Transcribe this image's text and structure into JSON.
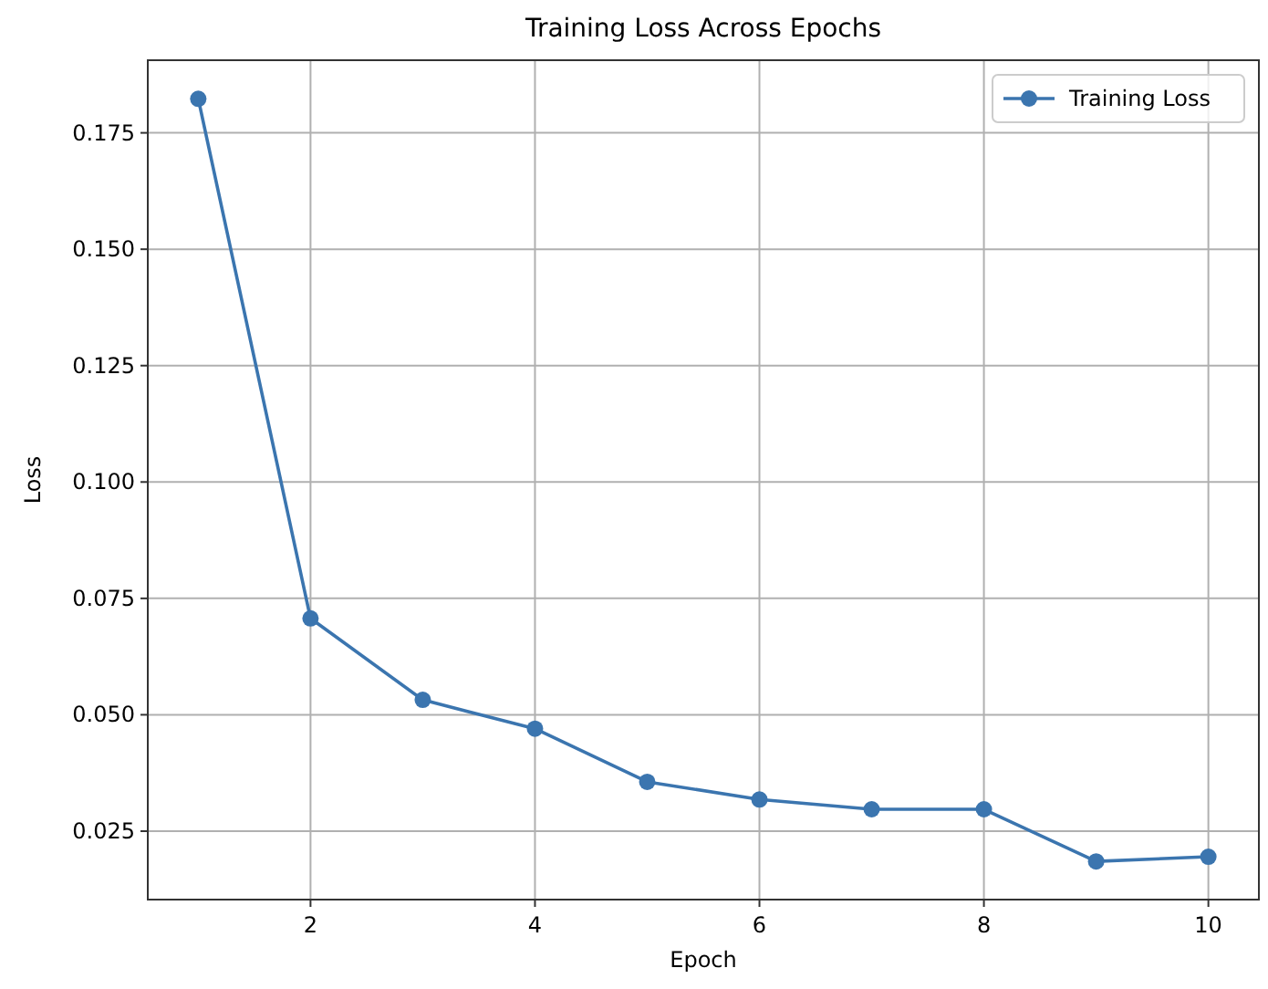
{
  "chart_data": {
    "type": "line",
    "title": "Training Loss Across Epochs",
    "xlabel": "Epoch",
    "ylabel": "Loss",
    "x": [
      1,
      2,
      3,
      4,
      5,
      6,
      7,
      8,
      9,
      10
    ],
    "series": [
      {
        "name": "Training Loss",
        "color": "#3b75af",
        "values": [
          0.1823,
          0.0707,
          0.0532,
          0.047,
          0.0356,
          0.0318,
          0.0297,
          0.0297,
          0.0185,
          0.0195
        ]
      }
    ],
    "xlim": [
      0.55,
      10.45
    ],
    "xticks": [
      2,
      4,
      6,
      8,
      10
    ],
    "ylim": [
      0.0103,
      0.1906
    ],
    "yticks": [
      {
        "value": 0.025,
        "label": "0.025"
      },
      {
        "value": 0.05,
        "label": "0.050"
      },
      {
        "value": 0.075,
        "label": "0.075"
      },
      {
        "value": 0.1,
        "label": "0.100"
      },
      {
        "value": 0.125,
        "label": "0.125"
      },
      {
        "value": 0.15,
        "label": "0.150"
      },
      {
        "value": 0.175,
        "label": "0.175"
      }
    ],
    "grid": true,
    "legend": "top right",
    "marker": "circle",
    "line_style": "solid"
  }
}
